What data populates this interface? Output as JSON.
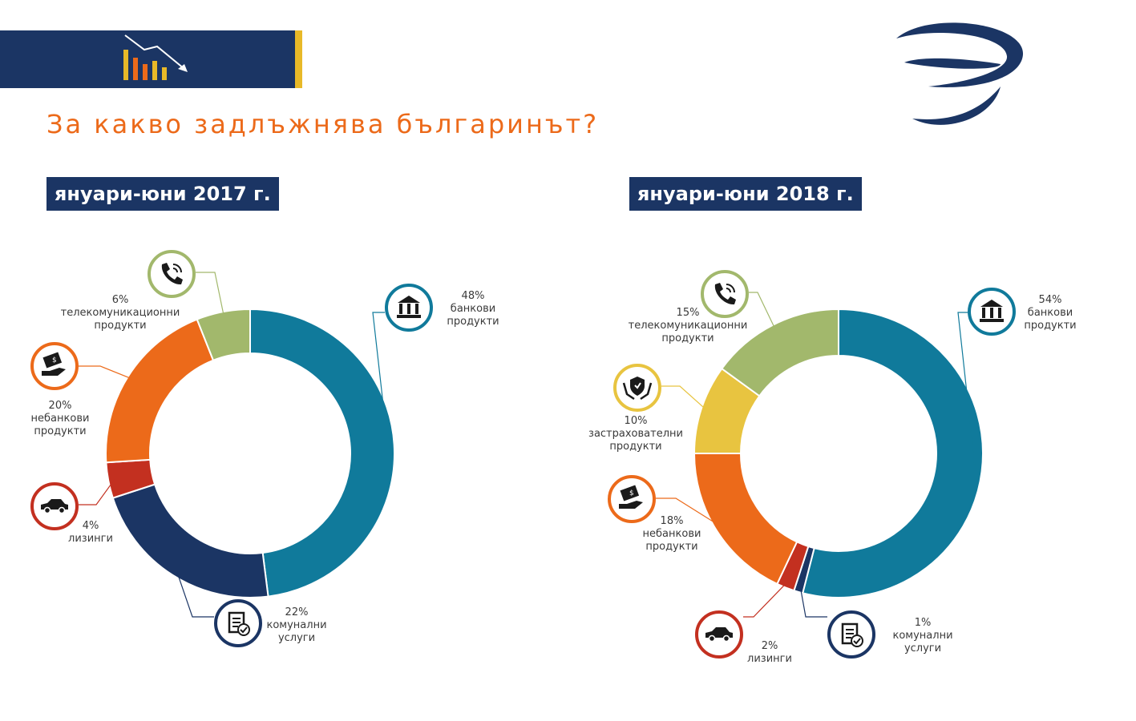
{
  "header": {
    "title": "За какво задлъжнява българинът?"
  },
  "colors": {
    "bank": "#107a9b",
    "utilities": "#1b3564",
    "leasing": "#c33020",
    "nonbank": "#ec6a1a",
    "insurance": "#e8c440",
    "telecom": "#a2b86c",
    "navy": "#1b3564",
    "accent": "#ec6a1a"
  },
  "chart_data": [
    {
      "type": "pie",
      "title": "януари-юни 2017 г.",
      "slices": [
        {
          "key": "bank",
          "percent_label": "48%",
          "label_lines": [
            "банкови",
            "продукти"
          ],
          "value": 48,
          "icon": "bank-icon"
        },
        {
          "key": "utilities",
          "percent_label": "22%",
          "label_lines": [
            "комунални",
            "услуги"
          ],
          "value": 22,
          "icon": "document-check-icon"
        },
        {
          "key": "leasing",
          "percent_label": "4%",
          "label_lines": [
            "лизинги"
          ],
          "value": 4,
          "icon": "car-icon"
        },
        {
          "key": "nonbank",
          "percent_label": "20%",
          "label_lines": [
            "небанкови",
            "продукти"
          ],
          "value": 20,
          "icon": "money-hand-icon"
        },
        {
          "key": "telecom",
          "percent_label": "6%",
          "label_lines": [
            "телекомуникационни",
            "продукти"
          ],
          "value": 6,
          "icon": "phone-icon"
        }
      ]
    },
    {
      "type": "pie",
      "title": "януари-юни 2018 г.",
      "slices": [
        {
          "key": "bank",
          "percent_label": "54%",
          "label_lines": [
            "банкови",
            "продукти"
          ],
          "value": 54,
          "icon": "bank-icon"
        },
        {
          "key": "utilities",
          "percent_label": "1%",
          "label_lines": [
            "комунални",
            "услуги"
          ],
          "value": 1,
          "icon": "document-check-icon"
        },
        {
          "key": "leasing",
          "percent_label": "2%",
          "label_lines": [
            "лизинги"
          ],
          "value": 2,
          "icon": "car-icon"
        },
        {
          "key": "nonbank",
          "percent_label": "18%",
          "label_lines": [
            "небанкови",
            "продукти"
          ],
          "value": 18,
          "icon": "money-hand-icon"
        },
        {
          "key": "insurance",
          "percent_label": "10%",
          "label_lines": [
            "застрахователни",
            "продукти"
          ],
          "value": 10,
          "icon": "shield-hands-icon"
        },
        {
          "key": "telecom",
          "percent_label": "15%",
          "label_lines": [
            "телекомуникационни",
            "продукти"
          ],
          "value": 15,
          "icon": "phone-icon"
        }
      ]
    }
  ]
}
